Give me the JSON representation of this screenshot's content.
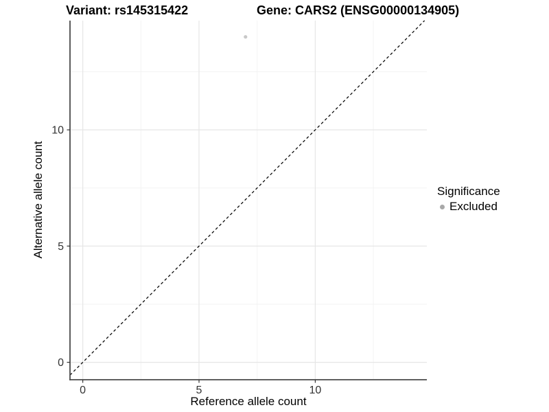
{
  "chart_data": {
    "type": "scatter",
    "title_left": "Variant: rs145315422",
    "title_right": "Gene: CARS2 (ENSG00000134905)",
    "xlabel": "Reference allele count",
    "ylabel": "Alternative allele count",
    "xlim": [
      -0.55,
      14.8
    ],
    "ylim": [
      -0.75,
      14.7
    ],
    "x_ticks": [
      0,
      5,
      10
    ],
    "y_ticks": [
      0,
      5,
      10
    ],
    "x_minor_ticks": [
      2.5,
      7.5,
      12.5
    ],
    "y_minor_ticks": [
      2.5,
      7.5,
      12.5
    ],
    "grid": "major+minor",
    "legend_position": "right",
    "series": [
      {
        "name": "Excluded",
        "marker": "circle",
        "point_color": "#c8c8c8",
        "points": [
          {
            "x": 7,
            "y": 14
          }
        ]
      }
    ],
    "reference_line": {
      "kind": "identity y=x",
      "style": "dashed",
      "color": "#0a0a0a"
    },
    "legend": {
      "title": "Significance",
      "entries": [
        {
          "label": "Excluded",
          "color": "#a8a8a8",
          "marker": "circle"
        }
      ]
    },
    "style_colors": {
      "background": "#ffffff",
      "grid_major": "#e6e6e6",
      "grid_minor": "#f3f3f3",
      "axis_line": "#4a4a4a",
      "tick_label": "#333333"
    }
  }
}
